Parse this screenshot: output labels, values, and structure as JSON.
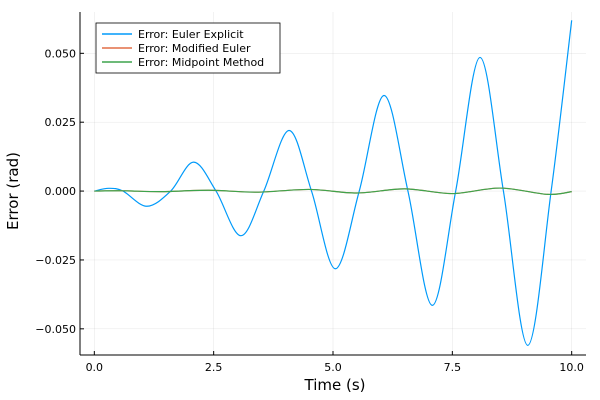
{
  "chart_data": {
    "type": "line",
    "title": "",
    "xlabel": "Time (s)",
    "ylabel": "Error (rad)",
    "xlim": [
      -0.3,
      10.3
    ],
    "ylim": [
      -0.0595,
      0.065
    ],
    "grid": true,
    "legend_position": "top-left",
    "x_ticks": [
      {
        "value": 0.0,
        "label": "0.0"
      },
      {
        "value": 2.5,
        "label": "2.5"
      },
      {
        "value": 5.0,
        "label": "5.0"
      },
      {
        "value": 7.5,
        "label": "7.5"
      },
      {
        "value": 10.0,
        "label": "10.0"
      }
    ],
    "y_ticks": [
      {
        "value": -0.05,
        "label": "−0.050"
      },
      {
        "value": -0.025,
        "label": "−0.025"
      },
      {
        "value": 0.0,
        "label": "0.000"
      },
      {
        "value": 0.025,
        "label": "0.025"
      },
      {
        "value": 0.05,
        "label": "0.050"
      }
    ],
    "series": [
      {
        "name": "Error: Euler Explicit",
        "color": "#009AFA",
        "points": [
          [
            0.0,
            0.0
          ],
          [
            0.3,
            0.001
          ],
          [
            0.6,
            0.0
          ],
          [
            1.1,
            -0.0055
          ],
          [
            1.6,
            0.0
          ],
          [
            2.08,
            0.0105
          ],
          [
            2.55,
            0.0
          ],
          [
            3.07,
            -0.0162
          ],
          [
            3.55,
            0.0
          ],
          [
            4.08,
            0.022
          ],
          [
            4.55,
            0.0
          ],
          [
            5.05,
            -0.0282
          ],
          [
            5.55,
            0.0
          ],
          [
            6.07,
            0.0347
          ],
          [
            6.57,
            0.0
          ],
          [
            7.08,
            -0.0415
          ],
          [
            7.57,
            0.0
          ],
          [
            8.08,
            0.0485
          ],
          [
            8.57,
            0.0
          ],
          [
            9.08,
            -0.056
          ],
          [
            9.57,
            0.0
          ],
          [
            10.0,
            0.062
          ]
        ]
      },
      {
        "name": "Error: Modified Euler",
        "color": "#E26F46",
        "points": [
          [
            0.0,
            0.0
          ],
          [
            0.6,
            0.0001
          ],
          [
            1.4,
            -0.0002
          ],
          [
            2.4,
            0.0003
          ],
          [
            3.4,
            -0.0004
          ],
          [
            4.5,
            0.0006
          ],
          [
            5.5,
            -0.0007
          ],
          [
            6.5,
            0.0008
          ],
          [
            7.5,
            -0.0009
          ],
          [
            8.5,
            0.0011
          ],
          [
            9.5,
            -0.0012
          ],
          [
            10.0,
            -0.0002
          ]
        ]
      },
      {
        "name": "Error: Midpoint Method",
        "color": "#3DA44D",
        "points": [
          [
            0.0,
            0.0
          ],
          [
            0.6,
            0.0001
          ],
          [
            1.4,
            -0.0002
          ],
          [
            2.4,
            0.0003
          ],
          [
            3.4,
            -0.0004
          ],
          [
            4.5,
            0.0006
          ],
          [
            5.5,
            -0.0007
          ],
          [
            6.5,
            0.0008
          ],
          [
            7.5,
            -0.0009
          ],
          [
            8.5,
            0.0011
          ],
          [
            9.5,
            -0.0012
          ],
          [
            10.0,
            -0.0002
          ]
        ]
      }
    ]
  }
}
